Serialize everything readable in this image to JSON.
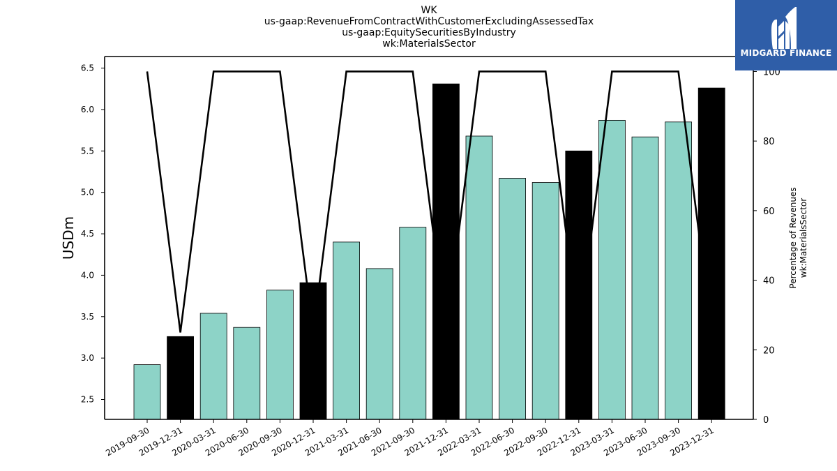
{
  "title_lines": [
    "WK",
    "us-gaap:RevenueFromContractWithCustomerExcludingAssessedTax",
    "us-gaap:EquitySecuritiesByIndustry",
    "wk:MaterialsSector"
  ],
  "logo": {
    "text": "MIDGARD FINANCE",
    "color": "#2f5ea8"
  },
  "chart_data": {
    "type": "bar",
    "categories": [
      "2019-09-30",
      "2019-12-31",
      "2020-03-31",
      "2020-06-30",
      "2020-09-30",
      "2020-12-31",
      "2021-03-31",
      "2021-06-30",
      "2021-09-30",
      "2021-12-31",
      "2022-03-31",
      "2022-06-30",
      "2022-09-30",
      "2022-12-31",
      "2023-03-31",
      "2023-06-30",
      "2023-09-30",
      "2023-12-31"
    ],
    "values": [
      2.92,
      3.26,
      3.54,
      3.37,
      3.82,
      3.91,
      4.4,
      4.08,
      4.58,
      6.31,
      5.68,
      5.17,
      5.12,
      5.5,
      5.87,
      5.67,
      5.85,
      6.26
    ],
    "highlight": [
      false,
      true,
      false,
      false,
      false,
      true,
      false,
      false,
      false,
      true,
      false,
      false,
      false,
      true,
      false,
      false,
      false,
      true
    ],
    "bar_color": "#8dd3c7",
    "highlight_color": "#000000",
    "ylabel": "USDm",
    "ylim": [
      2.26,
      6.64
    ],
    "yticks": [
      "2.5",
      "3.0",
      "3.5",
      "4.0",
      "4.5",
      "5.0",
      "5.5",
      "6.0",
      "6.5"
    ],
    "y2label_lines": [
      "Percentage of Revenues",
      "wk:MaterialsSector"
    ],
    "y2lim": [
      0,
      104.3
    ],
    "y2ticks": [
      "0",
      "20",
      "40",
      "60",
      "80",
      "100"
    ],
    "line_values": [
      100,
      25,
      100,
      100,
      100,
      25,
      100,
      100,
      100,
      25,
      100,
      100,
      100,
      25,
      100,
      100,
      100,
      25
    ],
    "line_color": "#000000",
    "grid": false,
    "legend": "none"
  }
}
